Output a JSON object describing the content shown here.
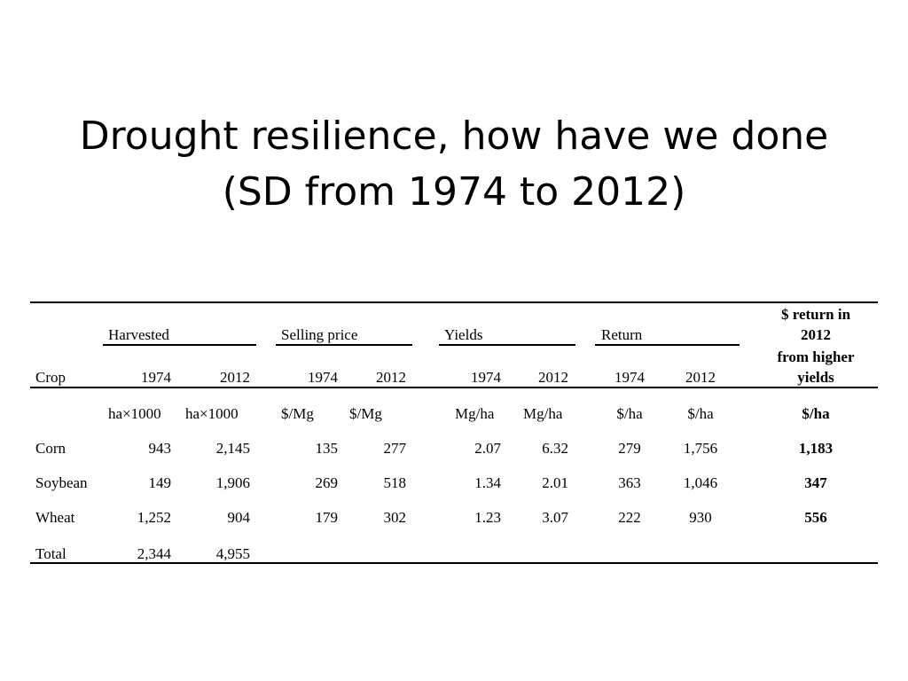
{
  "slide": {
    "title_line1": "Drought resilience, how have we done",
    "title_line2": "(SD from 1974 to 2012)"
  },
  "table": {
    "group_headers": {
      "harvested": "Harvested",
      "selling_price": "Selling price",
      "yields": "Yields",
      "return": "Return",
      "return_higher_line1": "$ return in",
      "return_higher_line2": "2012",
      "return_higher_line3": "from higher",
      "return_higher_line4": "yields"
    },
    "col_headers": {
      "crop": "Crop",
      "h1974": "1974",
      "h2012": "2012",
      "p1974": "1974",
      "p2012": "2012",
      "y1974": "1974",
      "y2012": "2012",
      "r1974": "1974",
      "r2012": "2012"
    },
    "units": {
      "h1974": "ha×1000",
      "h2012": "ha×1000",
      "p1974": "$/Mg",
      "p2012": "$/Mg",
      "y1974": "Mg/ha",
      "y2012": "Mg/ha",
      "r1974": "$/ha",
      "r2012": "$/ha",
      "gain": "$/ha"
    },
    "rows": [
      {
        "crop": "Corn",
        "h1974": "943",
        "h2012": "2,145",
        "p1974": "135",
        "p2012": "277",
        "y1974": "2.07",
        "y2012": "6.32",
        "r1974": "279",
        "r2012": "1,756",
        "gain": "1,183"
      },
      {
        "crop": "Soybean",
        "h1974": "149",
        "h2012": "1,906",
        "p1974": "269",
        "p2012": "518",
        "y1974": "1.34",
        "y2012": "2.01",
        "r1974": "363",
        "r2012": "1,046",
        "gain": "347"
      },
      {
        "crop": "Wheat",
        "h1974": "1,252",
        "h2012": "904",
        "p1974": "179",
        "p2012": "302",
        "y1974": "1.23",
        "y2012": "3.07",
        "r1974": "222",
        "r2012": "930",
        "gain": "556"
      },
      {
        "crop": "Total",
        "h1974": "2,344",
        "h2012": "4,955",
        "p1974": "",
        "p2012": "",
        "y1974": "",
        "y2012": "",
        "r1974": "",
        "r2012": "",
        "gain": ""
      }
    ]
  }
}
